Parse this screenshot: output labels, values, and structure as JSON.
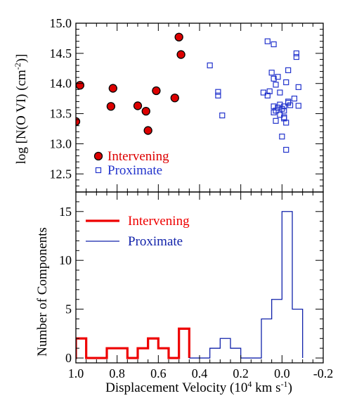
{
  "chart_data": [
    {
      "type": "scatter",
      "title": "",
      "xlabel_main": "Displacement Velocity (10",
      "xlabel_exp": "4",
      "xlabel_tail": " km s",
      "xlabel_exp2": "-1",
      "xlabel_close": ")",
      "ylabel_main": "log [N(O VI) (cm",
      "ylabel_exp": "-2",
      "ylabel_close": ")]",
      "xlim": [
        1.0,
        -0.2
      ],
      "ylim": [
        12.2,
        15.0
      ],
      "x_ticks": [
        1.0,
        0.8,
        0.6,
        0.4,
        0.2,
        0.0,
        -0.2
      ],
      "y_ticks": [
        12.5,
        13.0,
        13.5,
        14.0,
        14.5,
        15.0
      ],
      "y_tick_labels": [
        "12.5",
        "13.0",
        "13.5",
        "14.0",
        "14.5",
        "15.0"
      ],
      "legend_position": "bottom-left",
      "series": [
        {
          "name": "Intervening",
          "marker": "filled-circle",
          "color": "#dd0000",
          "points": [
            [
              1.0,
              13.37
            ],
            [
              0.98,
              13.97
            ],
            [
              0.83,
              13.62
            ],
            [
              0.82,
              13.92
            ],
            [
              0.7,
              13.63
            ],
            [
              0.66,
              13.54
            ],
            [
              0.65,
              13.22
            ],
            [
              0.61,
              13.88
            ],
            [
              0.52,
              13.76
            ],
            [
              0.5,
              14.77
            ],
            [
              0.49,
              14.48
            ]
          ]
        },
        {
          "name": "Proximate",
          "marker": "open-square",
          "color": "#2233cc",
          "points": [
            [
              0.35,
              14.3
            ],
            [
              0.31,
              13.86
            ],
            [
              0.31,
              13.8
            ],
            [
              0.29,
              13.47
            ],
            [
              0.09,
              13.85
            ],
            [
              0.07,
              14.7
            ],
            [
              0.07,
              13.8
            ],
            [
              0.06,
              13.87
            ],
            [
              0.05,
              14.18
            ],
            [
              0.04,
              14.65
            ],
            [
              0.04,
              14.08
            ],
            [
              0.04,
              13.62
            ],
            [
              0.04,
              13.52
            ],
            [
              0.03,
              13.98
            ],
            [
              0.03,
              13.38
            ],
            [
              0.03,
              13.55
            ],
            [
              0.02,
              14.11
            ],
            [
              0.02,
              13.6
            ],
            [
              0.01,
              13.85
            ],
            [
              0.01,
              13.48
            ],
            [
              0.01,
              13.65
            ],
            [
              0.0,
              13.12
            ],
            [
              0.0,
              13.58
            ],
            [
              -0.01,
              13.62
            ],
            [
              -0.01,
              13.44
            ],
            [
              -0.01,
              13.55
            ],
            [
              -0.01,
              13.42
            ],
            [
              -0.02,
              14.02
            ],
            [
              -0.02,
              13.35
            ],
            [
              -0.02,
              12.9
            ],
            [
              -0.03,
              13.7
            ],
            [
              -0.03,
              14.22
            ],
            [
              -0.03,
              13.68
            ],
            [
              -0.04,
              13.64
            ],
            [
              -0.06,
              13.75
            ],
            [
              -0.07,
              14.5
            ],
            [
              -0.07,
              14.44
            ],
            [
              -0.08,
              13.63
            ],
            [
              -0.08,
              13.94
            ]
          ]
        }
      ]
    },
    {
      "type": "histogram",
      "xlabel": "Displacement Velocity",
      "ylabel": "Number of Components",
      "xlim": [
        1.0,
        -0.2
      ],
      "ylim": [
        -0.5,
        17
      ],
      "x_ticks": [
        1.0,
        0.8,
        0.6,
        0.4,
        0.2,
        0.0,
        -0.2
      ],
      "x_tick_labels": [
        "1.0",
        "0.8",
        "0.6",
        "0.4",
        "0.2",
        "0.0",
        "-0.2"
      ],
      "y_ticks": [
        0,
        5,
        10,
        15
      ],
      "y_tick_labels": [
        "0",
        "5",
        "10",
        "15"
      ],
      "legend_position": "top-left",
      "series": [
        {
          "name": "Intervening",
          "color": "#ee0000",
          "line_weight": "thick",
          "edges": [
            1.05,
            1.0,
            0.95,
            0.9,
            0.85,
            0.8,
            0.75,
            0.7,
            0.65,
            0.6,
            0.55,
            0.5,
            0.45
          ],
          "counts": [
            0,
            2,
            0,
            0,
            1,
            1,
            0,
            1,
            2,
            1,
            0,
            3
          ]
        },
        {
          "name": "Proximate",
          "color": "#1122aa",
          "line_weight": "thin",
          "edges": [
            0.45,
            0.4,
            0.35,
            0.3,
            0.25,
            0.2,
            0.15,
            0.1,
            0.05,
            0.0,
            -0.05,
            -0.1
          ],
          "counts": [
            0,
            0,
            1,
            2,
            1,
            0,
            0,
            4,
            6,
            15,
            5
          ]
        }
      ]
    }
  ]
}
